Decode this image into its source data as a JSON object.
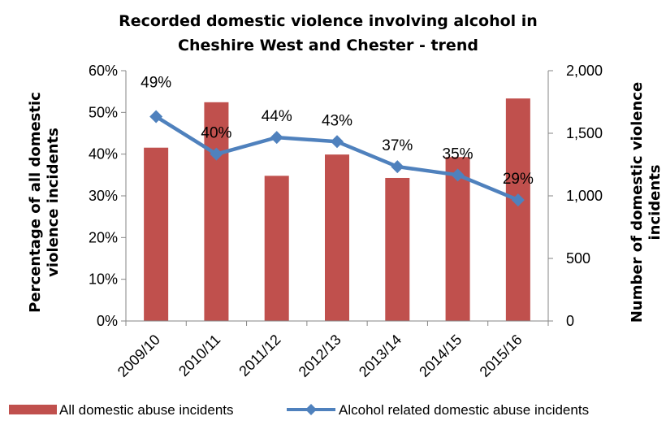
{
  "chart_data": {
    "type": "bar",
    "title_lines": [
      "Recorded domestic violence involving alcohol in",
      "Cheshire West and Chester - trend"
    ],
    "categories": [
      "2009/10",
      "2010/11",
      "2011/12",
      "2012/13",
      "2013/14",
      "2014/15",
      "2015/16"
    ],
    "ylabel_left_lines": [
      "Percentage of all domestic",
      "violence incidents"
    ],
    "ylabel_right_lines": [
      "Number of domestic violence",
      "incidents"
    ],
    "y_left": {
      "lim": [
        0,
        60
      ],
      "ticks": [
        0,
        10,
        20,
        30,
        40,
        50,
        60
      ],
      "tick_labels": [
        "0%",
        "10%",
        "20%",
        "30%",
        "40%",
        "50%",
        "60%"
      ]
    },
    "y_right": {
      "lim": [
        0,
        2000
      ],
      "ticks": [
        0,
        500,
        1000,
        1500,
        2000
      ],
      "tick_labels": [
        "0",
        "500",
        "1,000",
        "1,500",
        "2,000"
      ]
    },
    "grid": false,
    "legend_position": "bottom",
    "series": [
      {
        "name": "All domestic abuse incidents",
        "type": "bar",
        "axis": "right",
        "color": "#c0504d",
        "values": [
          1385,
          1748,
          1160,
          1330,
          1143,
          1310,
          1778
        ]
      },
      {
        "name": "Alcohol related domestic abuse incidents",
        "type": "line",
        "axis": "left",
        "color": "#4f81bd",
        "marker": "diamond",
        "values": [
          49,
          40,
          44,
          43,
          37,
          35,
          29
        ],
        "data_labels": [
          "49%",
          "40%",
          "44%",
          "43%",
          "37%",
          "35%",
          "29%"
        ]
      }
    ]
  }
}
